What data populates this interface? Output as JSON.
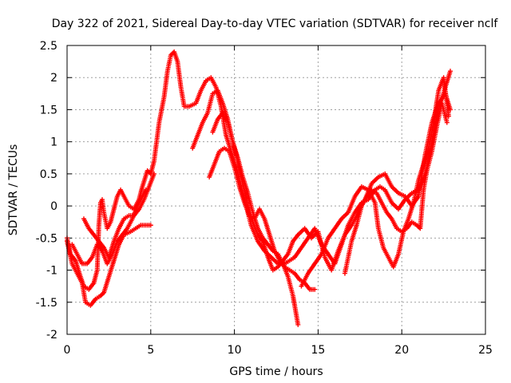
{
  "chart_data": {
    "type": "scatter",
    "title": "Day 322 of 2021, Sidereal Day-to-day VTEC variation (SDTVAR) for receiver nclf",
    "xlabel": "GPS time / hours",
    "ylabel": "SDTVAR / TECUs",
    "xlim": [
      0,
      25
    ],
    "ylim": [
      -2,
      2.5
    ],
    "xticks": [
      0,
      5,
      10,
      15,
      20,
      25
    ],
    "yticks": [
      -2,
      -1.5,
      -1,
      -0.5,
      0,
      0.5,
      1,
      1.5,
      2,
      2.5
    ],
    "xtick_labels": [
      "0",
      "5",
      "10",
      "15",
      "20",
      "25"
    ],
    "ytick_labels": [
      "-2",
      "-1.5",
      "-1",
      "-0.5",
      "0",
      "0.5",
      "1",
      "1.5",
      "2",
      "2.5"
    ],
    "grid": true,
    "marker": "+",
    "color": "#ff0000",
    "series": [
      {
        "points": [
          [
            0.0,
            -0.5
          ],
          [
            0.2,
            -0.75
          ],
          [
            0.5,
            -0.85
          ],
          [
            0.8,
            -1.1
          ],
          [
            1.0,
            -1.25
          ],
          [
            1.3,
            -1.3
          ],
          [
            1.6,
            -1.2
          ],
          [
            1.8,
            -1.0
          ],
          [
            1.9,
            -0.3
          ],
          [
            2.0,
            0.05
          ],
          [
            2.1,
            0.1
          ],
          [
            2.2,
            -0.1
          ],
          [
            2.4,
            -0.35
          ],
          [
            2.6,
            -0.25
          ],
          [
            2.8,
            -0.05
          ],
          [
            3.0,
            0.15
          ],
          [
            3.2,
            0.25
          ],
          [
            3.4,
            0.15
          ],
          [
            3.7,
            0.0
          ],
          [
            4.0,
            -0.05
          ],
          [
            4.3,
            0.1
          ],
          [
            4.5,
            0.3
          ],
          [
            4.8,
            0.55
          ],
          [
            5.0,
            0.5
          ],
          [
            5.2,
            0.7
          ],
          [
            5.5,
            1.3
          ],
          [
            5.8,
            1.7
          ],
          [
            6.0,
            2.1
          ],
          [
            6.2,
            2.35
          ],
          [
            6.4,
            2.4
          ],
          [
            6.6,
            2.25
          ],
          [
            6.8,
            1.85
          ],
          [
            7.0,
            1.55
          ],
          [
            7.3,
            1.55
          ],
          [
            7.7,
            1.6
          ],
          [
            8.0,
            1.8
          ],
          [
            8.3,
            1.95
          ],
          [
            8.6,
            2.0
          ],
          [
            8.9,
            1.85
          ],
          [
            9.2,
            1.55
          ],
          [
            9.5,
            1.1
          ],
          [
            9.8,
            0.85
          ],
          [
            10.1,
            0.6
          ],
          [
            10.4,
            0.3
          ],
          [
            10.7,
            0.0
          ],
          [
            11.0,
            -0.3
          ],
          [
            11.4,
            -0.55
          ],
          [
            11.8,
            -0.7
          ],
          [
            12.2,
            -0.8
          ],
          [
            12.6,
            -0.9
          ],
          [
            13.0,
            -0.9
          ],
          [
            13.3,
            -0.85
          ],
          [
            13.6,
            -0.8
          ],
          [
            14.0,
            -0.65
          ],
          [
            14.4,
            -0.5
          ],
          [
            14.8,
            -0.35
          ],
          [
            15.2,
            -0.6
          ],
          [
            15.6,
            -0.75
          ],
          [
            16.0,
            -0.9
          ],
          [
            16.4,
            -0.6
          ],
          [
            16.8,
            -0.3
          ],
          [
            17.2,
            -0.1
          ],
          [
            17.6,
            0.05
          ],
          [
            18.0,
            0.1
          ],
          [
            18.4,
            0.25
          ],
          [
            18.7,
            0.3
          ],
          [
            19.0,
            0.25
          ],
          [
            19.4,
            0.05
          ],
          [
            19.8,
            -0.05
          ],
          [
            20.2,
            0.1
          ],
          [
            20.6,
            0.2
          ],
          [
            21.0,
            0.25
          ],
          [
            21.4,
            0.5
          ],
          [
            21.8,
            1.0
          ],
          [
            22.2,
            1.5
          ],
          [
            22.6,
            1.85
          ],
          [
            22.9,
            2.1
          ]
        ]
      },
      {
        "points": [
          [
            0.0,
            -0.55
          ],
          [
            0.3,
            -0.9
          ],
          [
            0.6,
            -1.05
          ],
          [
            0.9,
            -1.2
          ],
          [
            1.1,
            -1.5
          ],
          [
            1.4,
            -1.55
          ],
          [
            1.7,
            -1.45
          ],
          [
            2.0,
            -1.4
          ],
          [
            2.2,
            -1.35
          ],
          [
            2.5,
            -1.1
          ],
          [
            2.8,
            -0.85
          ],
          [
            3.1,
            -0.6
          ],
          [
            3.4,
            -0.45
          ],
          [
            3.8,
            -0.4
          ],
          [
            4.1,
            -0.35
          ],
          [
            4.4,
            -0.3
          ],
          [
            4.7,
            -0.3
          ],
          [
            5.0,
            -0.3
          ]
        ]
      },
      {
        "points": [
          [
            0.3,
            -0.6
          ],
          [
            0.6,
            -0.75
          ],
          [
            0.9,
            -0.9
          ],
          [
            1.2,
            -0.9
          ],
          [
            1.5,
            -0.8
          ],
          [
            1.8,
            -0.6
          ],
          [
            2.1,
            -0.7
          ],
          [
            2.4,
            -0.9
          ],
          [
            2.7,
            -0.75
          ],
          [
            3.0,
            -0.55
          ],
          [
            3.3,
            -0.45
          ],
          [
            3.6,
            -0.35
          ],
          [
            3.9,
            -0.2
          ],
          [
            4.2,
            0.0
          ],
          [
            4.5,
            0.15
          ],
          [
            4.7,
            0.25
          ]
        ]
      },
      {
        "points": [
          [
            1.0,
            -0.2
          ],
          [
            1.3,
            -0.35
          ],
          [
            1.6,
            -0.45
          ],
          [
            1.9,
            -0.55
          ],
          [
            2.2,
            -0.65
          ],
          [
            2.5,
            -0.8
          ],
          [
            2.8,
            -0.55
          ],
          [
            3.1,
            -0.35
          ],
          [
            3.4,
            -0.2
          ],
          [
            3.7,
            -0.15
          ],
          [
            4.0,
            -0.15
          ],
          [
            4.3,
            -0.05
          ],
          [
            4.6,
            0.1
          ],
          [
            4.9,
            0.3
          ],
          [
            5.2,
            0.5
          ]
        ]
      },
      {
        "points": [
          [
            7.5,
            0.9
          ],
          [
            7.8,
            1.1
          ],
          [
            8.1,
            1.3
          ],
          [
            8.4,
            1.45
          ],
          [
            8.7,
            1.75
          ],
          [
            9.0,
            1.8
          ],
          [
            9.3,
            1.6
          ],
          [
            9.6,
            1.35
          ],
          [
            9.9,
            1.0
          ],
          [
            10.2,
            0.75
          ],
          [
            10.5,
            0.45
          ],
          [
            10.8,
            0.2
          ],
          [
            11.1,
            -0.1
          ],
          [
            11.4,
            -0.35
          ],
          [
            11.7,
            -0.5
          ],
          [
            12.0,
            -0.6
          ],
          [
            12.3,
            -0.7
          ],
          [
            12.6,
            -0.75
          ],
          [
            12.9,
            -0.9
          ],
          [
            13.2,
            -1.1
          ],
          [
            13.5,
            -1.4
          ],
          [
            13.8,
            -1.85
          ]
        ]
      },
      {
        "points": [
          [
            8.5,
            0.45
          ],
          [
            8.8,
            0.65
          ],
          [
            9.1,
            0.85
          ],
          [
            9.4,
            0.9
          ],
          [
            9.7,
            0.85
          ],
          [
            10.0,
            0.6
          ],
          [
            10.3,
            0.3
          ],
          [
            10.6,
            0.05
          ],
          [
            10.9,
            -0.15
          ],
          [
            11.2,
            -0.2
          ],
          [
            11.5,
            -0.05
          ],
          [
            11.8,
            -0.2
          ],
          [
            12.1,
            -0.45
          ],
          [
            12.4,
            -0.7
          ],
          [
            12.7,
            -0.85
          ],
          [
            13.0,
            -0.95
          ],
          [
            13.3,
            -1.0
          ],
          [
            13.6,
            -1.05
          ],
          [
            13.9,
            -1.15
          ],
          [
            14.2,
            -1.2
          ],
          [
            14.5,
            -1.3
          ],
          [
            14.8,
            -1.3
          ]
        ]
      },
      {
        "points": [
          [
            8.7,
            1.15
          ],
          [
            9.0,
            1.35
          ],
          [
            9.3,
            1.45
          ],
          [
            9.6,
            1.3
          ],
          [
            9.9,
            1.0
          ],
          [
            10.2,
            0.7
          ],
          [
            10.5,
            0.35
          ],
          [
            10.8,
            0.0
          ],
          [
            11.1,
            -0.25
          ],
          [
            11.4,
            -0.45
          ],
          [
            11.7,
            -0.55
          ],
          [
            12.0,
            -0.8
          ],
          [
            12.3,
            -1.0
          ],
          [
            12.6,
            -0.95
          ],
          [
            12.9,
            -0.85
          ],
          [
            13.2,
            -0.75
          ],
          [
            13.5,
            -0.55
          ],
          [
            13.8,
            -0.45
          ],
          [
            14.2,
            -0.35
          ],
          [
            14.6,
            -0.5
          ],
          [
            15.0,
            -0.4
          ],
          [
            15.4,
            -0.8
          ],
          [
            15.8,
            -1.0
          ],
          [
            16.2,
            -0.7
          ],
          [
            16.6,
            -0.45
          ],
          [
            17.0,
            -0.3
          ],
          [
            17.4,
            -0.1
          ],
          [
            17.8,
            0.1
          ],
          [
            18.2,
            0.35
          ],
          [
            18.6,
            0.45
          ],
          [
            19.0,
            0.5
          ],
          [
            19.4,
            0.3
          ],
          [
            19.8,
            0.2
          ],
          [
            20.2,
            0.15
          ],
          [
            20.6,
            0.0
          ],
          [
            21.0,
            0.15
          ],
          [
            21.4,
            0.8
          ],
          [
            21.8,
            1.3
          ],
          [
            22.2,
            1.6
          ],
          [
            22.6,
            1.75
          ],
          [
            22.9,
            1.5
          ]
        ]
      },
      {
        "points": [
          [
            14.0,
            -1.25
          ],
          [
            14.4,
            -1.05
          ],
          [
            14.8,
            -0.9
          ],
          [
            15.2,
            -0.75
          ],
          [
            15.6,
            -0.5
          ],
          [
            16.0,
            -0.35
          ],
          [
            16.4,
            -0.2
          ],
          [
            16.8,
            -0.1
          ],
          [
            17.2,
            0.15
          ],
          [
            17.6,
            0.3
          ],
          [
            18.0,
            0.25
          ],
          [
            18.4,
            0.05
          ],
          [
            18.6,
            -0.35
          ],
          [
            18.9,
            -0.65
          ],
          [
            19.2,
            -0.8
          ],
          [
            19.5,
            -0.95
          ],
          [
            19.8,
            -0.75
          ],
          [
            20.1,
            -0.4
          ],
          [
            20.4,
            -0.2
          ],
          [
            20.7,
            0.05
          ],
          [
            21.0,
            0.4
          ],
          [
            21.3,
            0.65
          ],
          [
            21.6,
            0.9
          ],
          [
            21.9,
            1.3
          ],
          [
            22.2,
            1.8
          ],
          [
            22.5,
            2.0
          ],
          [
            22.8,
            1.4
          ]
        ]
      },
      {
        "points": [
          [
            16.6,
            -1.05
          ],
          [
            16.8,
            -0.8
          ],
          [
            17.0,
            -0.55
          ],
          [
            17.3,
            -0.3
          ],
          [
            17.6,
            0.0
          ],
          [
            17.9,
            0.15
          ],
          [
            18.2,
            0.25
          ],
          [
            18.5,
            0.2
          ],
          [
            18.8,
            0.05
          ],
          [
            19.1,
            -0.1
          ],
          [
            19.4,
            -0.2
          ],
          [
            19.7,
            -0.35
          ],
          [
            20.0,
            -0.4
          ],
          [
            20.3,
            -0.35
          ],
          [
            20.6,
            -0.25
          ],
          [
            20.9,
            -0.3
          ],
          [
            21.1,
            -0.35
          ],
          [
            21.3,
            0.25
          ],
          [
            21.5,
            0.55
          ],
          [
            21.8,
            0.85
          ],
          [
            22.1,
            1.25
          ],
          [
            22.4,
            1.6
          ],
          [
            22.7,
            1.3
          ]
        ]
      }
    ]
  }
}
